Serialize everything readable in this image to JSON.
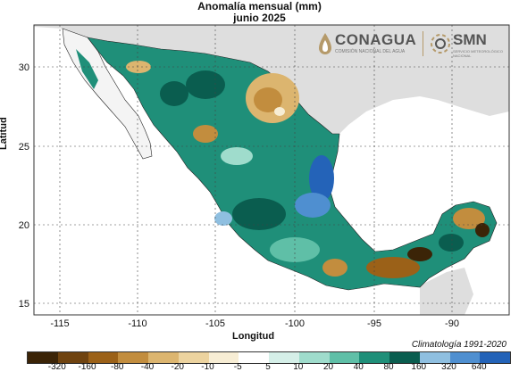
{
  "title": "Anomalía mensual (mm)",
  "subtitle": "junio 2025",
  "axes": {
    "xlabel": "Longitud",
    "ylabel": "Latitud",
    "x_ticks": [
      "-115",
      "-110",
      "-105",
      "-100",
      "-95",
      "-90"
    ],
    "y_ticks": [
      "30",
      "25",
      "20",
      "15"
    ]
  },
  "note": "Climatología 1991-2020",
  "logos": {
    "conagua": "CONAGUA",
    "conagua_sub": "COMISIÓN NACIONAL DEL AGUA",
    "smn": "SMN",
    "smn_sub": "SERVICIO METEOROLÓGICO NACIONAL"
  },
  "legend": {
    "breaks": [
      "-320",
      "-160",
      "-80",
      "-40",
      "-20",
      "-10",
      "-5",
      "5",
      "10",
      "20",
      "40",
      "80",
      "160",
      "320",
      "640"
    ],
    "colors": [
      "#3b2407",
      "#6f4310",
      "#9b6118",
      "#c28d3e",
      "#dcb56f",
      "#ecd39f",
      "#f7edd4",
      "#ffffff",
      "#d5efe8",
      "#9fdccc",
      "#5fbfa7",
      "#1f8f79",
      "#0a5d4f",
      "#8fbfe0",
      "#4f8fd0",
      "#2463b8"
    ]
  },
  "colors": {
    "sea": "#ffffff",
    "land_outside": "#dedede",
    "frame": "#333333"
  }
}
